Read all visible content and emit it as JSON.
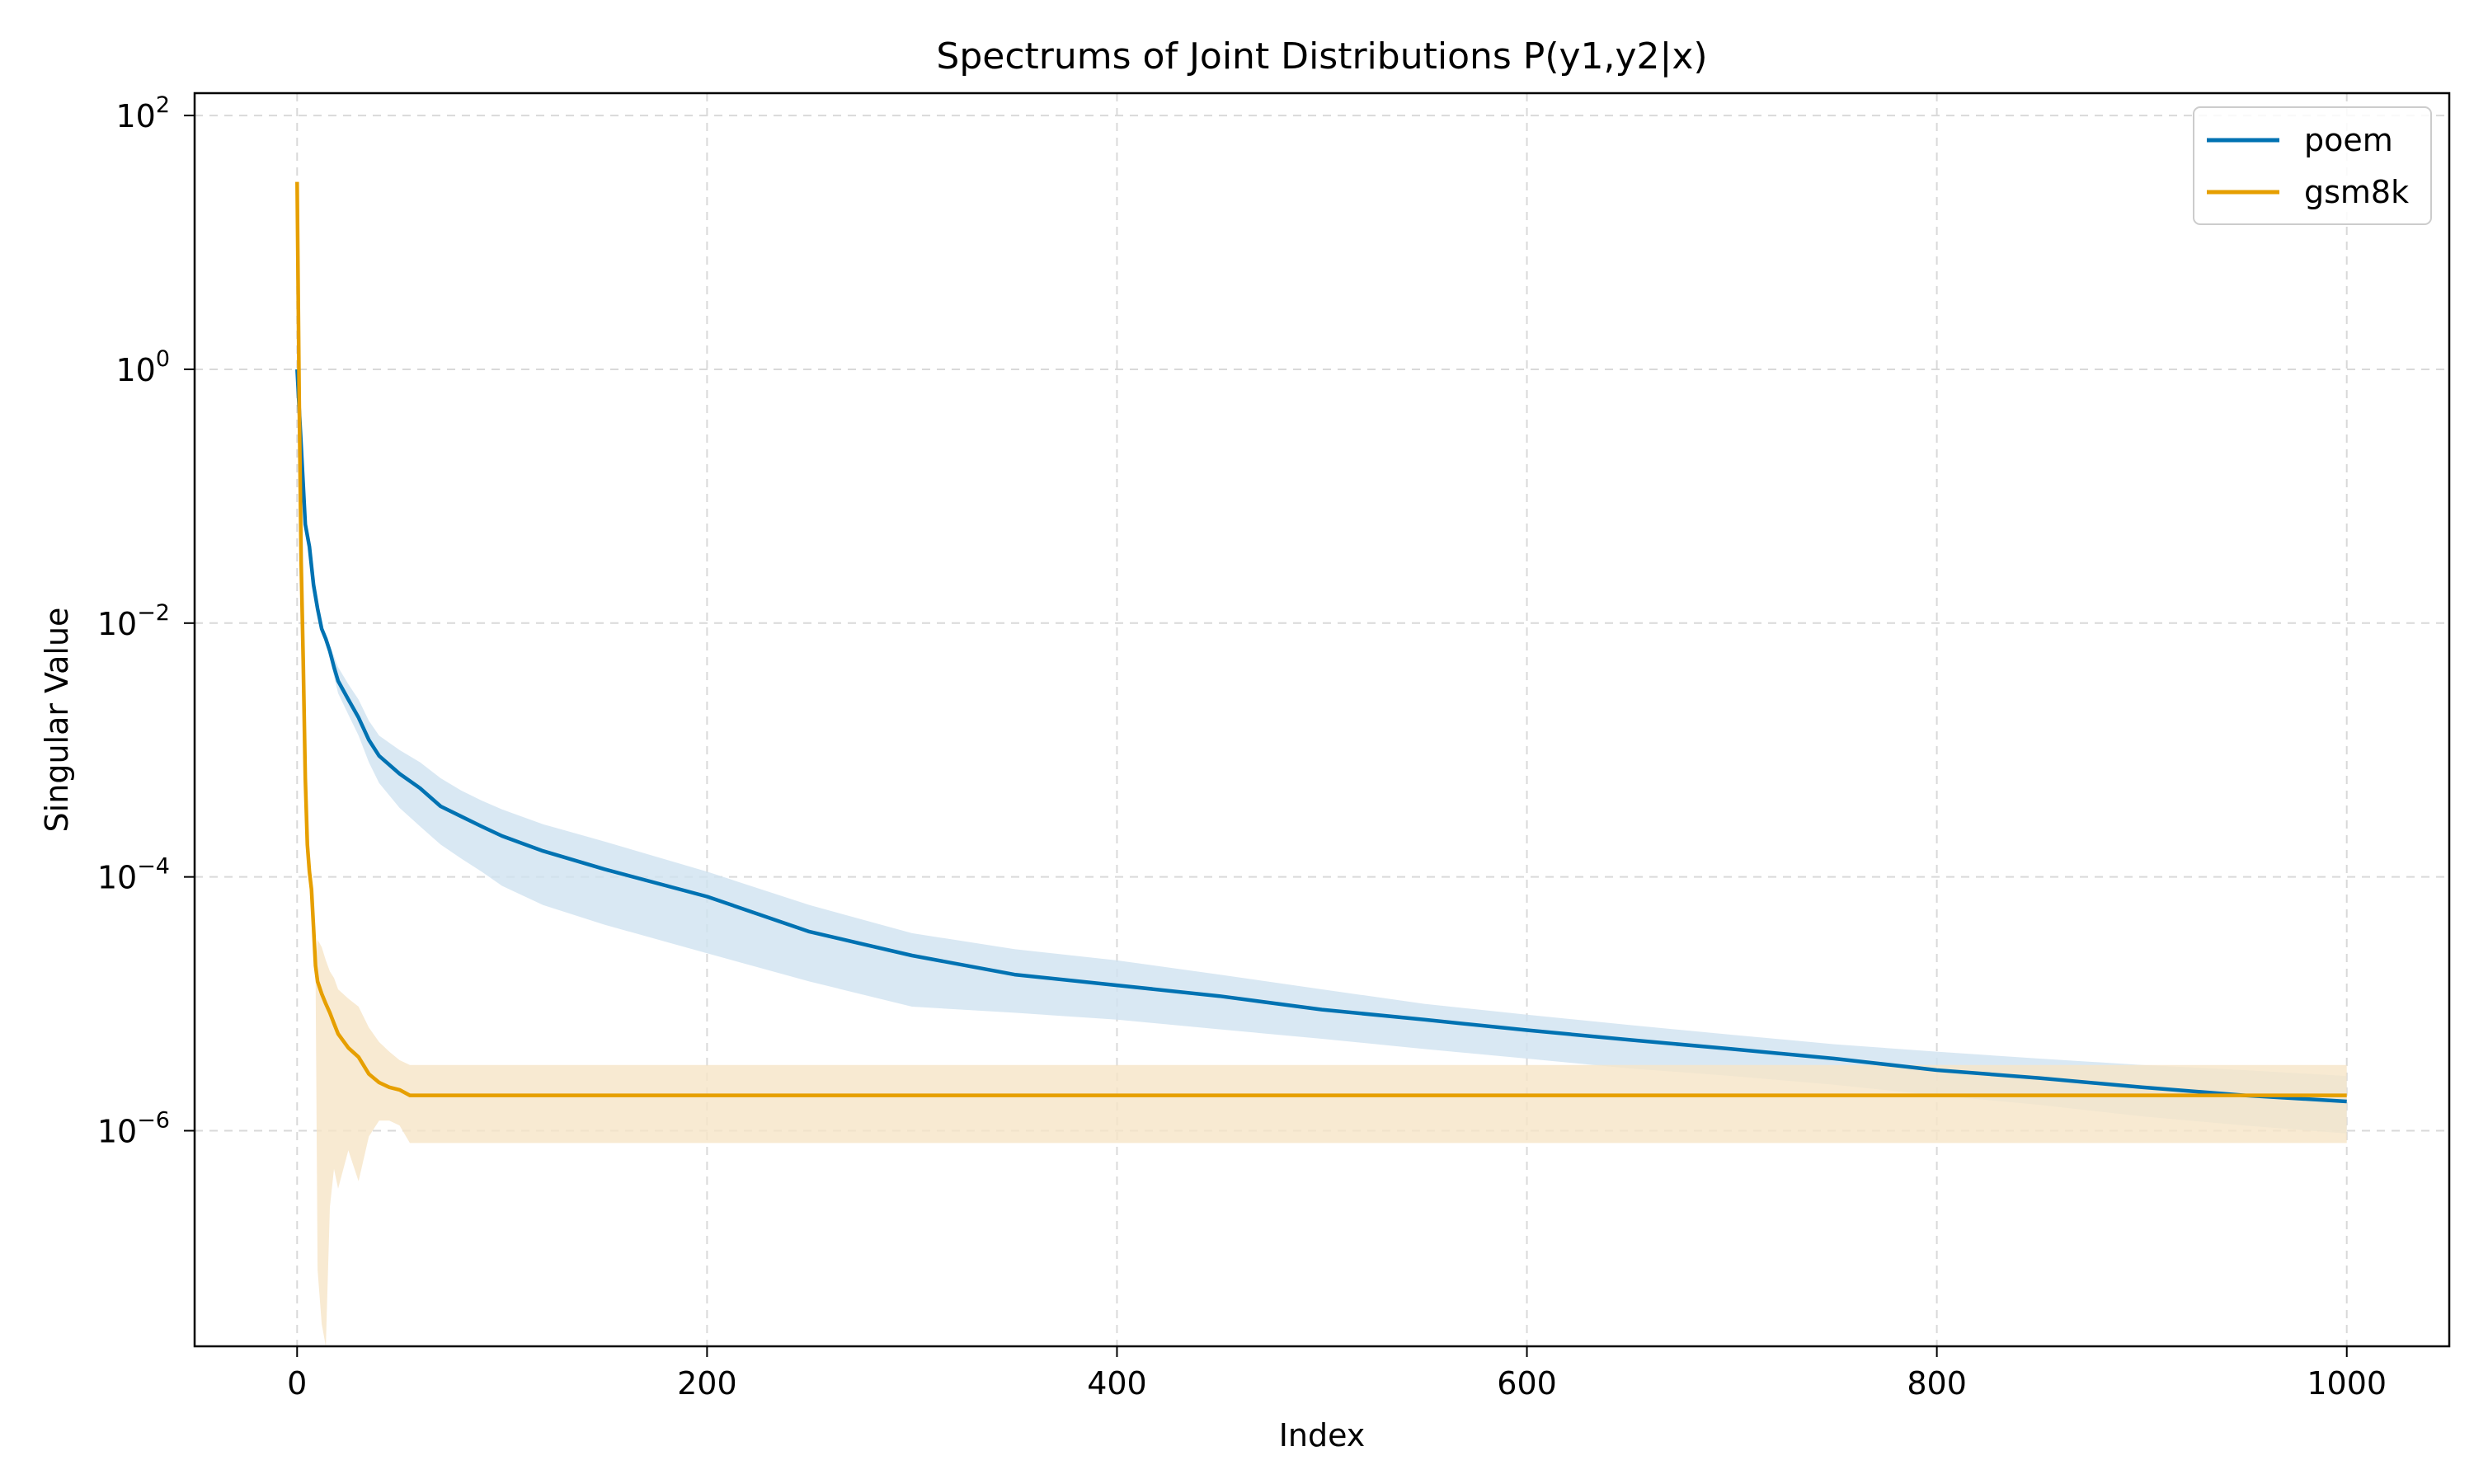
{
  "chart_data": {
    "type": "line",
    "title": "Spectrums of Joint Distributions P(y1,y2|x)",
    "xlabel": "Index",
    "ylabel": "Singular Value",
    "y_scale": "log",
    "xlim": [
      -50,
      1050
    ],
    "ylim": [
      2e-08,
      150
    ],
    "x_ticks": [
      0,
      200,
      400,
      600,
      800,
      1000
    ],
    "y_ticks": [
      {
        "value": 1e-06,
        "base": "10",
        "exp": "−6"
      },
      {
        "value": 0.0001,
        "base": "10",
        "exp": "−4"
      },
      {
        "value": 0.01,
        "base": "10",
        "exp": "−2"
      },
      {
        "value": 1,
        "base": "10",
        "exp": "0"
      },
      {
        "value": 100,
        "base": "10",
        "exp": "2"
      }
    ],
    "grid": true,
    "legend_position": "top-right",
    "series": [
      {
        "name": "poem",
        "color": "#0072b2",
        "band_color": "#cfe2f0",
        "x": [
          0,
          2,
          4,
          6,
          8,
          10,
          12,
          14,
          16,
          18,
          20,
          25,
          30,
          35,
          40,
          50,
          60,
          70,
          80,
          90,
          100,
          120,
          150,
          200,
          250,
          300,
          350,
          400,
          450,
          500,
          550,
          600,
          650,
          700,
          750,
          800,
          850,
          900,
          950,
          1000
        ],
        "y": [
          1.0,
          0.25,
          0.06,
          0.04,
          0.02,
          0.013,
          0.009,
          0.0075,
          0.006,
          0.0045,
          0.0035,
          0.0025,
          0.0018,
          0.0012,
          0.0009,
          0.00065,
          0.0005,
          0.00036,
          0.0003,
          0.00025,
          0.00021,
          0.00016,
          0.000115,
          7e-05,
          3.7e-05,
          2.4e-05,
          1.7e-05,
          1.4e-05,
          1.15e-05,
          9e-06,
          7.5e-06,
          6.2e-06,
          5.2e-06,
          4.4e-06,
          3.7e-06,
          3e-06,
          2.6e-06,
          2.2e-06,
          1.9e-06,
          1.7e-06
        ],
        "y_lower": [
          1.0,
          0.25,
          0.06,
          0.04,
          0.02,
          0.013,
          0.009,
          0.0072,
          0.0055,
          0.0038,
          0.0028,
          0.0019,
          0.0013,
          0.0008,
          0.00055,
          0.00035,
          0.00025,
          0.00018,
          0.00014,
          0.00011,
          8.5e-05,
          6e-05,
          4.2e-05,
          2.5e-05,
          1.5e-05,
          9.5e-06,
          8.5e-06,
          7.5e-06,
          6.3e-06,
          5.3e-06,
          4.4e-06,
          3.7e-06,
          3.1e-06,
          2.7e-06,
          2.3e-06,
          1.9e-06,
          1.6e-06,
          1.3e-06,
          1.1e-06,
          9.5e-07
        ],
        "y_upper": [
          1.0,
          0.25,
          0.06,
          0.04,
          0.02,
          0.013,
          0.009,
          0.0078,
          0.0065,
          0.0055,
          0.0045,
          0.0033,
          0.0025,
          0.0017,
          0.0013,
          0.001,
          0.0008,
          0.0006,
          0.00048,
          0.0004,
          0.00034,
          0.00026,
          0.00019,
          0.00011,
          6e-05,
          3.6e-05,
          2.7e-05,
          2.2e-05,
          1.7e-05,
          1.3e-05,
          1e-05,
          8.2e-06,
          6.8e-06,
          5.7e-06,
          4.8e-06,
          4.2e-06,
          3.7e-06,
          3.3e-06,
          3e-06,
          2.7e-06
        ]
      },
      {
        "name": "gsm8k",
        "color": "#e69f00",
        "band_color": "#f6e5c7",
        "x": [
          0,
          1,
          2,
          3,
          4,
          5,
          6,
          7,
          8,
          9,
          10,
          12,
          14,
          16,
          18,
          20,
          25,
          30,
          35,
          40,
          45,
          50,
          55,
          60,
          100,
          200,
          300,
          400,
          500,
          600,
          700,
          800,
          900,
          1000
        ],
        "y": [
          30,
          0.6,
          0.03,
          0.005,
          0.0006,
          0.00018,
          0.00011,
          8e-05,
          4e-05,
          2e-05,
          1.5e-05,
          1.2e-05,
          1e-05,
          8.5e-06,
          7e-06,
          5.8e-06,
          4.5e-06,
          3.8e-06,
          2.8e-06,
          2.4e-06,
          2.2e-06,
          2.1e-06,
          1.9e-06,
          1.9e-06,
          1.9e-06,
          1.9e-06,
          1.9e-06,
          1.9e-06,
          1.9e-06,
          1.9e-06,
          1.9e-06,
          1.9e-06,
          1.9e-06,
          1.9e-06
        ],
        "y_lower": [
          30,
          0.6,
          0.03,
          0.005,
          0.0006,
          0.00018,
          0.00011,
          8e-05,
          4e-05,
          2e-05,
          8e-08,
          3e-08,
          2e-08,
          2.5e-07,
          5e-07,
          3.5e-07,
          7e-07,
          4e-07,
          9e-07,
          1.2e-06,
          1.2e-06,
          1.1e-06,
          8e-07,
          8e-07,
          8e-07,
          8e-07,
          8e-07,
          8e-07,
          8e-07,
          8e-07,
          8e-07,
          8e-07,
          8e-07,
          8e-07
        ],
        "y_upper": [
          30,
          0.6,
          0.03,
          0.005,
          0.0006,
          0.00018,
          0.00011,
          8e-05,
          4e-05,
          2e-05,
          3.2e-05,
          2.8e-05,
          2.2e-05,
          1.8e-05,
          1.6e-05,
          1.3e-05,
          1.1e-05,
          9.5e-06,
          6.5e-06,
          5e-06,
          4.2e-06,
          3.6e-06,
          3.3e-06,
          3.3e-06,
          3.3e-06,
          3.3e-06,
          3.3e-06,
          3.3e-06,
          3.3e-06,
          3.3e-06,
          3.3e-06,
          3.3e-06,
          3.3e-06,
          3.3e-06
        ]
      }
    ]
  }
}
